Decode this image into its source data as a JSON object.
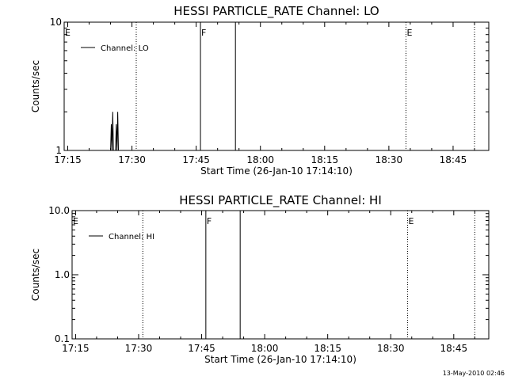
{
  "footer_timestamp": "13-May-2010 02:46",
  "chart_data": [
    {
      "type": "line",
      "title": "HESSI PARTICLE_RATE Channel: LO",
      "xlabel": "Start Time (26-Jan-10 17:14:10)",
      "ylabel": "Counts/sec",
      "yscale": "log",
      "xlim": [
        "17:14:10",
        "18:53:20"
      ],
      "ylim": [
        1,
        10
      ],
      "x_ticks": [
        "17:15",
        "17:30",
        "17:45",
        "18:00",
        "18:15",
        "18:30",
        "18:45"
      ],
      "y_ticks": [
        "1",
        "10"
      ],
      "legend": {
        "position": "top-left",
        "entries": [
          "Channel: LO"
        ]
      },
      "series": [
        {
          "name": "Channel: LO",
          "points": [
            [
              "17:25:00",
              1
            ],
            [
              "17:25:10",
              1.6
            ],
            [
              "17:25:20",
              1
            ],
            [
              "17:25:30",
              2
            ],
            [
              "17:25:40",
              1
            ],
            [
              "17:26:10",
              1
            ],
            [
              "17:26:20",
              1.6
            ],
            [
              "17:26:30",
              1
            ],
            [
              "17:26:40",
              2
            ],
            [
              "17:26:50",
              1
            ]
          ]
        }
      ],
      "markers": [
        {
          "label": "E",
          "time": "17:14:10",
          "style": "dotted"
        },
        {
          "label": "",
          "time": "17:31:00",
          "style": "dotted"
        },
        {
          "label": "F",
          "time": "17:46:00",
          "style": "solid"
        },
        {
          "label": "",
          "time": "17:54:10",
          "style": "solid"
        },
        {
          "label": "E",
          "time": "18:34:00",
          "style": "dotted"
        },
        {
          "label": "",
          "time": "18:50:00",
          "style": "dotted"
        }
      ]
    },
    {
      "type": "line",
      "title": "HESSI PARTICLE_RATE Channel: HI",
      "xlabel": "Start Time (26-Jan-10 17:14:10)",
      "ylabel": "Counts/sec",
      "yscale": "log",
      "xlim": [
        "17:14:10",
        "18:53:20"
      ],
      "ylim": [
        0.1,
        10
      ],
      "x_ticks": [
        "17:15",
        "17:30",
        "17:45",
        "18:00",
        "18:15",
        "18:30",
        "18:45"
      ],
      "y_ticks": [
        "0.1",
        "1.0",
        "10.0"
      ],
      "legend": {
        "position": "top-left",
        "entries": [
          "Channel: HI"
        ]
      },
      "series": [
        {
          "name": "Channel: HI",
          "points": []
        }
      ],
      "markers": [
        {
          "label": "E",
          "time": "17:14:10",
          "style": "dotted"
        },
        {
          "label": "",
          "time": "17:31:00",
          "style": "dotted"
        },
        {
          "label": "F",
          "time": "17:46:00",
          "style": "solid"
        },
        {
          "label": "",
          "time": "17:54:10",
          "style": "solid"
        },
        {
          "label": "E",
          "time": "18:34:00",
          "style": "dotted"
        },
        {
          "label": "",
          "time": "18:50:00",
          "style": "dotted"
        }
      ]
    }
  ]
}
